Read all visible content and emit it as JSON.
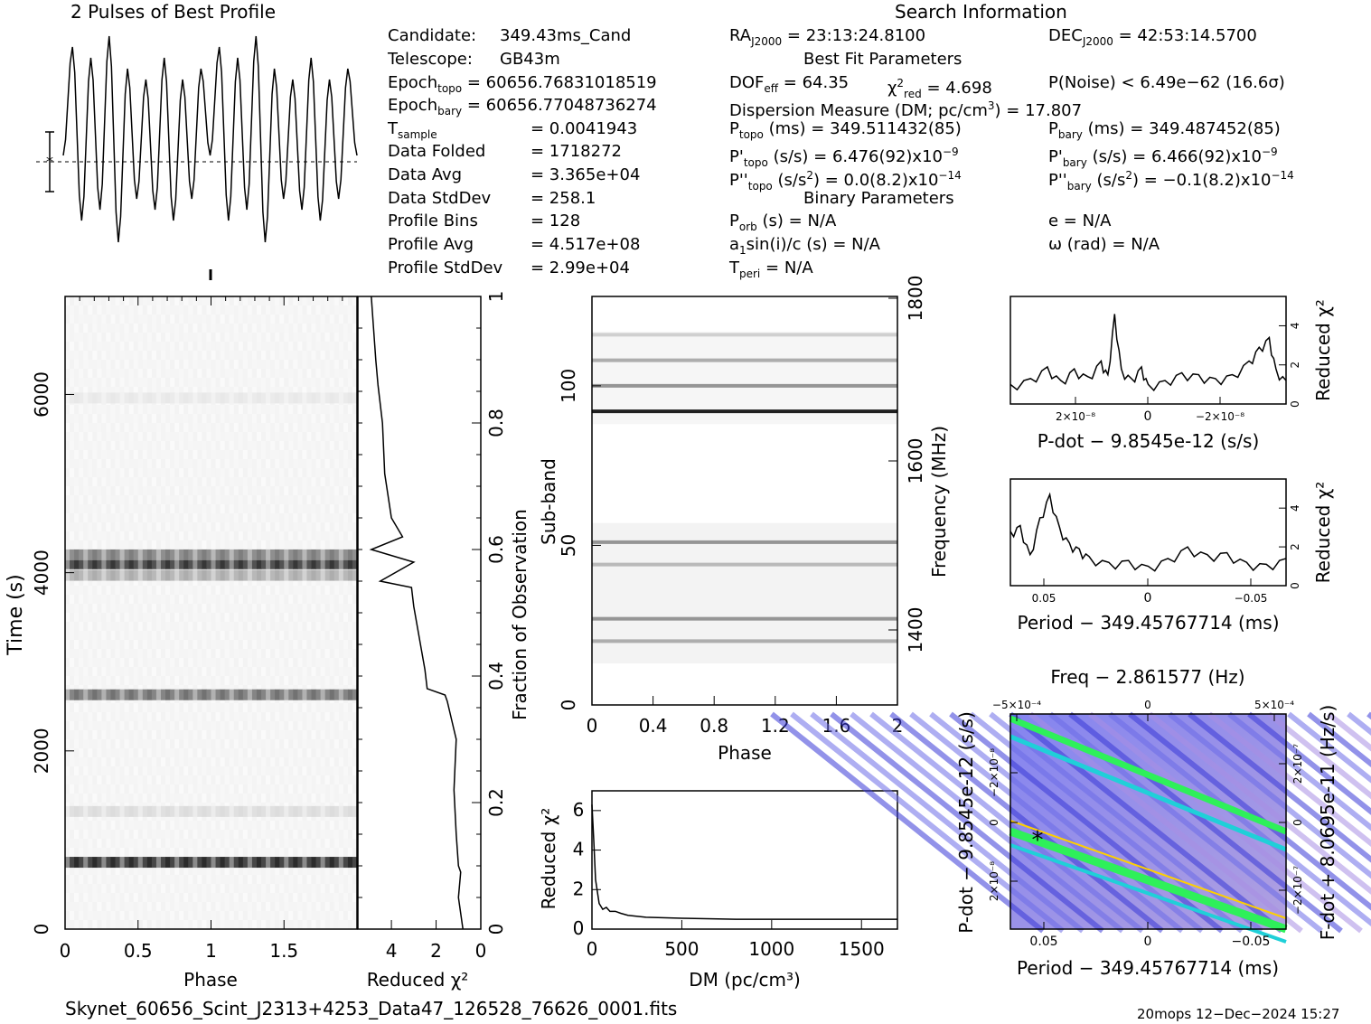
{
  "header": {
    "title": "2 Pulses of Best Profile",
    "search_title": "Search Information",
    "candidate_label": "Candidate:",
    "candidate": "349.43ms_Cand",
    "telescope_label": "Telescope:",
    "telescope": "GB43m",
    "epoch_topo_label": "Epoch",
    "epoch_topo_sub": "topo",
    "epoch_topo": "= 60656.76831018519",
    "epoch_bary_label": "Epoch",
    "epoch_bary_sub": "bary",
    "epoch_bary": "= 60656.77048736274",
    "tsample_label": "T",
    "tsample_sub": "sample",
    "tsample": "=   0.0041943",
    "data_folded_label": "Data Folded",
    "data_folded": "=   1718272",
    "data_avg_label": "Data Avg",
    "data_avg": "=   3.365e+04",
    "data_std_label": "Data StdDev",
    "data_std": "=   258.1",
    "profile_bins_label": "Profile Bins",
    "profile_bins": "=   128",
    "profile_avg_label": "Profile Avg",
    "profile_avg": "=   4.517e+08",
    "profile_std_label": "Profile StdDev",
    "profile_std": "=   2.99e+04",
    "ra_label": "RA",
    "ra_sub": "J2000",
    "ra": "= 23:13:24.8100",
    "dec_label": "DEC",
    "dec_sub": "J2000",
    "dec": "= 42:53:14.5700",
    "best_fit_title": "Best Fit Parameters",
    "dof_label": "DOF",
    "dof_sub": "eff",
    "dof": "= 64.35",
    "chi_label": "χ",
    "chi_sup": "2",
    "chi_sub": "red",
    "chi": "= 4.698",
    "pnoise": "P(Noise) < 6.49e−62   (16.6σ)",
    "dm_line_a": "Dispersion Measure (DM; pc/cm",
    "dm_line_sup": "3",
    "dm_line_b": ") = 17.807",
    "ptopo_label": "P",
    "ptopo_sub": "topo",
    "ptopo": "(ms)  =  349.511432(85)",
    "pbary_label": "P",
    "pbary_sub": "bary",
    "pbary": "(ms)  =  349.487452(85)",
    "pdtopo_label": "P'",
    "pdtopo_sub": "topo",
    "pdtopo": "(s/s)  =  6.476(92)x10",
    "pdtopo_sup": "−9",
    "pdbary_label": "P'",
    "pdbary_sub": "bary",
    "pdbary": "(s/s)  =  6.466(92)x10",
    "pdbary_sup": "−9",
    "pddtopo_label": "P''",
    "pddtopo_sub": "topo",
    "pddtopo_a": "(s/s",
    "pddtopo_sup1": "2",
    "pddtopo_b": ") = 0.0(8.2)x10",
    "pddtopo_sup2": "−14",
    "pddbary_label": "P''",
    "pddbary_sub": "bary",
    "pddbary_a": "(s/s",
    "pddbary_sup1": "2",
    "pddbary_b": ") = −0.1(8.2)x10",
    "pddbary_sup2": "−14",
    "binary_title": "Binary Parameters",
    "porb_label": "P",
    "porb_sub": "orb",
    "porb": "(s) = N/A",
    "a1_label": "a",
    "a1_sub": "1",
    "a1": "sin(i)/c (s) = N/A",
    "tperi_label": "T",
    "tperi_sub": "peri",
    "tperi": "= N/A",
    "ecc": "e = N/A",
    "omega": "ω (rad) = N/A"
  },
  "footer": {
    "filename": "Skynet_60656_Scint_J2313+4253_Data47_126528_76626_0001.fits",
    "stamp": "20mops 12−Dec−2024 15:27"
  },
  "colors": {
    "axes": "#000000",
    "grid_band": "#404040",
    "ppdot_low": "#7a7ae8",
    "ppdot_mid": "#1fd0d8",
    "ppdot_high": "#2ef05a",
    "ppdot_peak": "#ffd000"
  },
  "chart_data": [
    {
      "type": "line",
      "title": "2 Pulses of Best Profile",
      "xlabel": "",
      "ylabel": "",
      "x": [
        0,
        0.0625,
        0.125,
        0.1875,
        0.25,
        0.3125,
        0.375,
        0.4375,
        0.5,
        0.5625,
        0.625,
        0.6875,
        0.75,
        0.8125,
        0.875,
        0.9375,
        1.0,
        1.0625,
        1.125,
        1.1875,
        1.25,
        1.3125,
        1.375,
        1.4375,
        1.5,
        1.5625,
        1.625,
        1.6875,
        1.75,
        1.8125,
        1.875,
        1.9375,
        2.0
      ],
      "values": [
        0.45,
        0.95,
        0.15,
        0.9,
        0.2,
        1.0,
        0.05,
        0.85,
        0.25,
        0.8,
        0.2,
        0.9,
        0.15,
        0.8,
        0.25,
        0.85,
        0.45,
        0.95,
        0.15,
        0.9,
        0.2,
        1.0,
        0.05,
        0.85,
        0.25,
        0.8,
        0.2,
        0.9,
        0.15,
        0.8,
        0.25,
        0.85,
        0.45
      ]
    },
    {
      "type": "heatmap",
      "xlabel": "Phase",
      "ylabel": "Time (s)",
      "xticks": [
        "0",
        "0.5",
        "1",
        "1.5"
      ],
      "yticks": [
        "0",
        "2000",
        "4000",
        "6000"
      ],
      "xlim": [
        0,
        2
      ],
      "ylim": [
        0,
        7100
      ],
      "dark_bands_s": [
        {
          "t": 750,
          "level": 0.9
        },
        {
          "t": 1320,
          "level": 0.15
        },
        {
          "t": 2630,
          "level": 0.6
        },
        {
          "t": 3970,
          "level": 0.35
        },
        {
          "t": 4100,
          "level": 0.85
        },
        {
          "t": 4200,
          "level": 0.55
        },
        {
          "t": 5960,
          "level": 0.1
        }
      ]
    },
    {
      "type": "line",
      "xlabel": "Reduced χ²",
      "ylabel": "Fraction of Observation",
      "xticks": [
        "4",
        "2",
        "0"
      ],
      "yticks": [
        "0",
        "0.2",
        "0.4",
        "0.6",
        "0.8",
        "1"
      ],
      "xlim": [
        5.5,
        0
      ],
      "ylim": [
        0,
        1
      ],
      "x": [
        0.8,
        1.0,
        0.9,
        1.0,
        1.1,
        1.2,
        1.1,
        1.3,
        1.5,
        1.6,
        2.4,
        2.5,
        2.6,
        2.7,
        2.8,
        3.0,
        3.1,
        4.5,
        3.0,
        4.9,
        3.5,
        4.0,
        4.3,
        4.4,
        4.6,
        4.7,
        4.8,
        4.9
      ],
      "y": [
        0.0,
        0.05,
        0.09,
        0.1,
        0.15,
        0.22,
        0.3,
        0.33,
        0.36,
        0.37,
        0.38,
        0.41,
        0.43,
        0.45,
        0.47,
        0.51,
        0.54,
        0.55,
        0.58,
        0.6,
        0.62,
        0.65,
        0.72,
        0.8,
        0.86,
        0.9,
        0.95,
        1.0
      ]
    },
    {
      "type": "heatmap",
      "xlabel": "Phase",
      "ylabel": "Sub-band",
      "y2label": "Frequency (MHz)",
      "xticks": [
        "0",
        "0.4",
        "0.8",
        "1.2",
        "1.6",
        "2"
      ],
      "yticks": [
        "0",
        "50",
        "100"
      ],
      "y2ticks": [
        "1400",
        "1600",
        "1800"
      ],
      "xlim": [
        0,
        2
      ],
      "ylim": [
        0,
        128
      ],
      "bright_channels": [
        {
          "ch": 20,
          "level": 0.35
        },
        {
          "ch": 27,
          "level": 0.45
        },
        {
          "ch": 44,
          "level": 0.3
        },
        {
          "ch": 51,
          "level": 0.45
        },
        {
          "ch": 92,
          "level": 0.95
        },
        {
          "ch": 100,
          "level": 0.45
        },
        {
          "ch": 108,
          "level": 0.35
        },
        {
          "ch": 116,
          "level": 0.2
        }
      ]
    },
    {
      "type": "line",
      "xlabel": "DM (pc/cm³)",
      "ylabel": "Reduced χ²",
      "xticks": [
        "0",
        "500",
        "1000",
        "1500"
      ],
      "yticks": [
        "0",
        "2",
        "4",
        "6"
      ],
      "xlim": [
        0,
        1700
      ],
      "ylim": [
        0,
        7
      ],
      "x": [
        0,
        10,
        20,
        40,
        60,
        80,
        100,
        130,
        160,
        200,
        300,
        500,
        800,
        1100,
        1400,
        1700
      ],
      "y": [
        6.3,
        4.5,
        2.5,
        1.3,
        1.0,
        1.1,
        0.9,
        0.9,
        0.8,
        0.7,
        0.6,
        0.55,
        0.5,
        0.5,
        0.5,
        0.5
      ]
    },
    {
      "type": "line",
      "xlabel": "P-dot − 9.8545e-12 (s/s)",
      "ylabel": "Reduced χ²",
      "xticks": [
        "2×10⁻⁸",
        "0",
        "−2×10⁻⁸"
      ],
      "yticks": [
        "0",
        "2",
        "4"
      ],
      "xlim": [
        4.1e-08,
        -4.1e-08
      ],
      "ylim": [
        0,
        5.5
      ],
      "x": [
        4.1e-08,
        3.5e-08,
        3e-08,
        2.6e-08,
        2.2e-08,
        1.8e-08,
        1.4e-08,
        1.2e-08,
        1e-08,
        8e-09,
        5e-09,
        2e-09,
        0,
        -5e-09,
        -1e-08,
        -1.5e-08,
        -2e-08,
        -2.5e-08,
        -3e-08,
        -3.3e-08,
        -3.6e-08,
        -3.8e-08,
        -4.1e-08
      ],
      "y": [
        1.0,
        1.3,
        1.9,
        1.2,
        1.8,
        1.4,
        2.2,
        1.5,
        4.6,
        1.8,
        1.3,
        1.9,
        1.0,
        1.2,
        1.6,
        1.5,
        1.3,
        1.5,
        2.2,
        2.9,
        3.4,
        1.8,
        1.2
      ]
    },
    {
      "type": "line",
      "xlabel": "Period − 349.45767714 (ms)",
      "ylabel": "Reduced χ²",
      "xticks": [
        "0.05",
        "0",
        "−0.05"
      ],
      "yticks": [
        "0",
        "2",
        "4"
      ],
      "xlim": [
        0.07,
        -0.07
      ],
      "ylim": [
        0,
        5.5
      ],
      "x": [
        0.07,
        0.065,
        0.06,
        0.055,
        0.05,
        0.045,
        0.04,
        0.035,
        0.03,
        0.02,
        0.01,
        0,
        -0.01,
        -0.02,
        -0.03,
        -0.04,
        -0.05,
        -0.06,
        -0.07
      ],
      "y": [
        2.8,
        3.1,
        1.6,
        3.5,
        4.7,
        3.0,
        2.2,
        1.9,
        1.5,
        1.2,
        1.3,
        1.0,
        1.4,
        2.0,
        1.6,
        1.7,
        1.2,
        1.1,
        1.4
      ]
    },
    {
      "type": "heatmap",
      "title": "Freq − 2.861577 (Hz)",
      "xlabel": "Period − 349.45767714 (ms)",
      "ylabel": "P-dot − 9.8545e-12 (s/s)",
      "y2label": "F-dot + 8.0695e-11 (Hz/s)",
      "xticks": [
        "0.05",
        "0",
        "−0.05"
      ],
      "x2ticks": [
        "−5×10⁻⁴",
        "0",
        "5×10⁻⁴"
      ],
      "yticks": [
        "2×10⁻⁸",
        "0",
        "−2×10⁻⁸"
      ],
      "y2ticks": [
        "−2×10⁻⁷",
        "0",
        "2×10⁻⁷"
      ],
      "best_fit": {
        "period": 0.05,
        "pdot": 8e-09
      }
    }
  ]
}
